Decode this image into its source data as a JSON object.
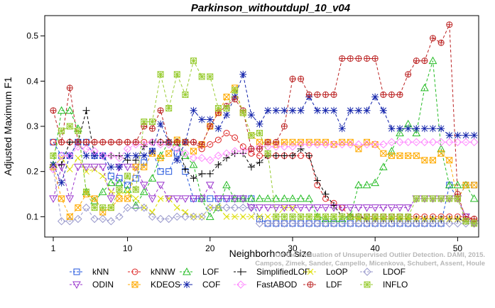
{
  "chart_data": {
    "type": "line",
    "title": "Parkinson_withoutdupl_10_v04",
    "xlabel": "Neighborhood size",
    "ylabel": "Adjusted Maximum F1",
    "xlim": [
      1,
      52
    ],
    "ylim": [
      0.055,
      0.545
    ],
    "x_ticks": [
      1,
      10,
      20,
      30,
      40,
      50
    ],
    "y_ticks": [
      0.1,
      0.2,
      0.3,
      0.4,
      0.5
    ],
    "grid": false,
    "legend_position": "bottom",
    "watermark": [
      "Campos, Zimek, Sander, Campello, Micenkova, Schubert, Assent, Houle",
      "On the Evaluation of Unsupervised Outlier Detection. DAMI, 2015."
    ],
    "series": [
      {
        "name": "kNN",
        "color": "#2255dd",
        "marker": "square",
        "values": [
          0.265,
          0.235,
          0.235,
          0.265,
          0.265,
          0.235,
          0.235,
          0.19,
          0.185,
          0.17,
          0.185,
          0.22,
          0.245,
          0.2,
          0.2,
          0.24,
          0.2,
          0.14,
          0.14,
          0.14,
          0.14,
          0.14,
          0.14,
          0.14,
          0.14,
          0.095,
          0.085,
          0.085,
          0.085,
          0.085,
          0.085,
          0.085,
          0.085,
          0.085,
          0.085,
          0.085,
          0.085,
          0.085,
          0.085,
          0.085,
          0.085,
          0.085,
          0.085,
          0.085,
          0.085,
          0.085,
          0.085,
          0.085,
          0.17,
          0.14,
          0.17,
          0.17
        ]
      },
      {
        "name": "kNNW",
        "color": "#dd2222",
        "marker": "circle",
        "values": [
          0.265,
          0.265,
          0.265,
          0.265,
          0.265,
          0.265,
          0.265,
          0.265,
          0.265,
          0.265,
          0.265,
          0.265,
          0.265,
          0.265,
          0.265,
          0.265,
          0.265,
          0.265,
          0.25,
          0.26,
          0.27,
          0.285,
          0.275,
          0.255,
          0.24,
          0.235,
          0.235,
          0.235,
          0.235,
          0.235,
          0.235,
          0.235,
          0.17,
          0.14,
          0.13,
          0.12,
          0.1,
          0.1,
          0.1,
          0.1,
          0.1,
          0.1,
          0.1,
          0.1,
          0.1,
          0.1,
          0.1,
          0.1,
          0.1,
          0.1,
          0.1,
          0.095
        ]
      },
      {
        "name": "LOF",
        "color": "#22bb22",
        "marker": "triangle",
        "values": [
          0.215,
          0.335,
          0.335,
          0.295,
          0.155,
          0.135,
          0.155,
          0.175,
          0.175,
          0.16,
          0.125,
          0.155,
          0.185,
          0.235,
          0.265,
          0.265,
          0.235,
          0.215,
          0.14,
          0.1,
          0.12,
          0.17,
          0.14,
          0.14,
          0.14,
          0.14,
          0.14,
          0.14,
          0.14,
          0.14,
          0.14,
          0.14,
          0.1,
          0.095,
          0.095,
          0.095,
          0.1,
          0.17,
          0.17,
          0.175,
          0.21,
          0.245,
          0.285,
          0.305,
          0.285,
          0.385,
          0.445,
          0.25,
          0.17,
          0.17,
          0.17,
          0.14
        ]
      },
      {
        "name": "SimplifiedLOF",
        "color": "#000000",
        "marker": "plus",
        "values": [
          0.21,
          0.215,
          0.265,
          0.265,
          0.335,
          0.235,
          0.235,
          0.235,
          0.235,
          0.225,
          0.225,
          0.255,
          0.265,
          0.265,
          0.265,
          0.265,
          0.205,
          0.185,
          0.195,
          0.195,
          0.215,
          0.23,
          0.24,
          0.24,
          0.21,
          0.22,
          0.235,
          0.235,
          0.235,
          0.235,
          0.25,
          0.235,
          0.18,
          0.15,
          0.125,
          0.1,
          0.1,
          0.1,
          0.095,
          0.095,
          0.095,
          0.095,
          0.095,
          0.095,
          0.095,
          0.095,
          0.095,
          0.095,
          0.095,
          0.095,
          0.09,
          0.09
        ]
      },
      {
        "name": "LoOP",
        "color": "#dddd00",
        "marker": "x",
        "values": [
          0.21,
          0.23,
          0.205,
          0.23,
          0.2,
          0.205,
          0.19,
          0.155,
          0.15,
          0.155,
          0.14,
          0.12,
          0.11,
          0.14,
          0.14,
          0.12,
          0.11,
          0.1,
          0.1,
          0.12,
          0.12,
          0.1,
          0.1,
          0.1,
          0.1,
          0.1,
          0.1,
          0.1,
          0.12,
          0.12,
          0.1,
          0.1,
          0.1,
          0.1,
          0.1,
          0.1,
          0.1,
          0.095,
          0.095,
          0.095,
          0.095,
          0.095,
          0.095,
          0.095,
          0.095,
          0.095,
          0.095,
          0.095,
          0.095,
          0.095,
          0.09,
          0.09
        ]
      },
      {
        "name": "LDOF",
        "color": "#9999cc",
        "marker": "diamond",
        "values": [
          0.205,
          0.09,
          0.09,
          0.095,
          0.12,
          0.095,
          0.095,
          0.09,
          0.1,
          0.12,
          0.12,
          0.12,
          0.1,
          0.095,
          0.095,
          0.1,
          0.1,
          0.1,
          0.1,
          0.12,
          0.12,
          0.12,
          0.12,
          0.12,
          0.12,
          0.085,
          0.085,
          0.085,
          0.085,
          0.085,
          0.085,
          0.085,
          0.085,
          0.085,
          0.085,
          0.085,
          0.085,
          0.085,
          0.085,
          0.085,
          0.085,
          0.085,
          0.085,
          0.085,
          0.085,
          0.085,
          0.085,
          0.085,
          0.085,
          0.085,
          0.085,
          0.085
        ]
      },
      {
        "name": "ODIN",
        "color": "#9933cc",
        "marker": "triangle-down",
        "values": [
          0.14,
          0.21,
          0.14,
          0.21,
          0.21,
          0.21,
          0.21,
          0.14,
          0.21,
          0.21,
          0.21,
          0.17,
          0.14,
          0.17,
          0.14,
          0.14,
          0.14,
          0.14,
          0.14,
          0.17,
          0.14,
          0.14,
          0.14,
          0.14,
          0.12,
          0.12,
          0.12,
          0.12,
          0.12,
          0.12,
          0.12,
          0.12,
          0.12,
          0.12,
          0.12,
          0.12,
          0.12,
          0.12,
          0.12,
          0.12,
          0.12,
          0.12,
          0.12,
          0.12,
          0.14,
          0.14,
          0.14,
          0.14,
          0.14,
          0.14,
          0.1,
          0.085
        ]
      },
      {
        "name": "KDEOS",
        "color": "#ffaa00",
        "marker": "square-x",
        "values": [
          0.21,
          0.14,
          0.1,
          0.12,
          0.15,
          0.14,
          0.11,
          0.12,
          0.14,
          0.14,
          0.21,
          0.21,
          0.24,
          0.23,
          0.24,
          0.27,
          0.265,
          0.245,
          0.26,
          0.3,
          0.33,
          0.365,
          0.385,
          0.33,
          0.28,
          0.265,
          0.265,
          0.26,
          0.265,
          0.265,
          0.265,
          0.265,
          0.265,
          0.265,
          0.26,
          0.265,
          0.265,
          0.25,
          0.265,
          0.26,
          0.24,
          0.235,
          0.235,
          0.235,
          0.235,
          0.225,
          0.225,
          0.24,
          0.225,
          0.14,
          0.17,
          0.17
        ]
      },
      {
        "name": "COF",
        "color": "#1122aa",
        "marker": "star",
        "values": [
          0.215,
          0.175,
          0.235,
          0.265,
          0.235,
          0.235,
          0.235,
          0.21,
          0.21,
          0.235,
          0.235,
          0.235,
          0.245,
          0.305,
          0.265,
          0.225,
          0.265,
          0.335,
          0.315,
          0.315,
          0.295,
          0.325,
          0.365,
          0.415,
          0.325,
          0.305,
          0.335,
          0.335,
          0.335,
          0.335,
          0.335,
          0.365,
          0.335,
          0.335,
          0.335,
          0.295,
          0.335,
          0.335,
          0.335,
          0.365,
          0.335,
          0.295,
          0.295,
          0.295,
          0.295,
          0.295,
          0.295,
          0.295,
          0.28,
          0.28,
          0.28,
          0.28
        ]
      },
      {
        "name": "FastABOD",
        "color": "#ff88ff",
        "marker": "diamond",
        "values": [
          0.205,
          0.235,
          0.235,
          0.255,
          0.25,
          0.245,
          0.235,
          0.235,
          0.23,
          0.25,
          0.26,
          0.26,
          0.265,
          0.26,
          0.26,
          0.25,
          0.24,
          0.23,
          0.23,
          0.225,
          0.235,
          0.24,
          0.245,
          0.245,
          0.25,
          0.255,
          0.255,
          0.255,
          0.255,
          0.255,
          0.26,
          0.26,
          0.26,
          0.26,
          0.26,
          0.26,
          0.26,
          0.26,
          0.26,
          0.26,
          0.26,
          0.265,
          0.265,
          0.265,
          0.265,
          0.265,
          0.265,
          0.265,
          0.265,
          0.265,
          0.265,
          0.265
        ]
      },
      {
        "name": "LDF",
        "color": "#bb2222",
        "marker": "circle-plus",
        "values": [
          0.335,
          0.265,
          0.385,
          0.265,
          0.265,
          0.265,
          0.265,
          0.265,
          0.265,
          0.265,
          0.265,
          0.3,
          0.295,
          0.335,
          0.265,
          0.265,
          0.265,
          0.265,
          0.26,
          0.3,
          0.33,
          0.345,
          0.36,
          0.335,
          0.25,
          0.25,
          0.265,
          0.265,
          0.3,
          0.405,
          0.405,
          0.37,
          0.37,
          0.37,
          0.37,
          0.45,
          0.45,
          0.45,
          0.45,
          0.45,
          0.37,
          0.37,
          0.37,
          0.415,
          0.445,
          0.445,
          0.495,
          0.485,
          0.525,
          0.15,
          0.095,
          0.095
        ]
      },
      {
        "name": "INFLO",
        "color": "#99cc33",
        "marker": "square-cross",
        "values": [
          0.235,
          0.29,
          0.3,
          0.29,
          0.155,
          0.12,
          0.12,
          0.12,
          0.16,
          0.19,
          0.16,
          0.31,
          0.31,
          0.415,
          0.34,
          0.415,
          0.37,
          0.445,
          0.41,
          0.41,
          0.34,
          0.34,
          0.38,
          0.33,
          0.28,
          0.285,
          0.24,
          0.1,
          0.1,
          0.1,
          0.1,
          0.1,
          0.1,
          0.1,
          0.1,
          0.1,
          0.1,
          0.1,
          0.1,
          0.1,
          0.1,
          0.1,
          0.1,
          0.1,
          0.14,
          0.14,
          0.14,
          0.14,
          0.14,
          0.14,
          0.09,
          0.085
        ]
      }
    ]
  }
}
